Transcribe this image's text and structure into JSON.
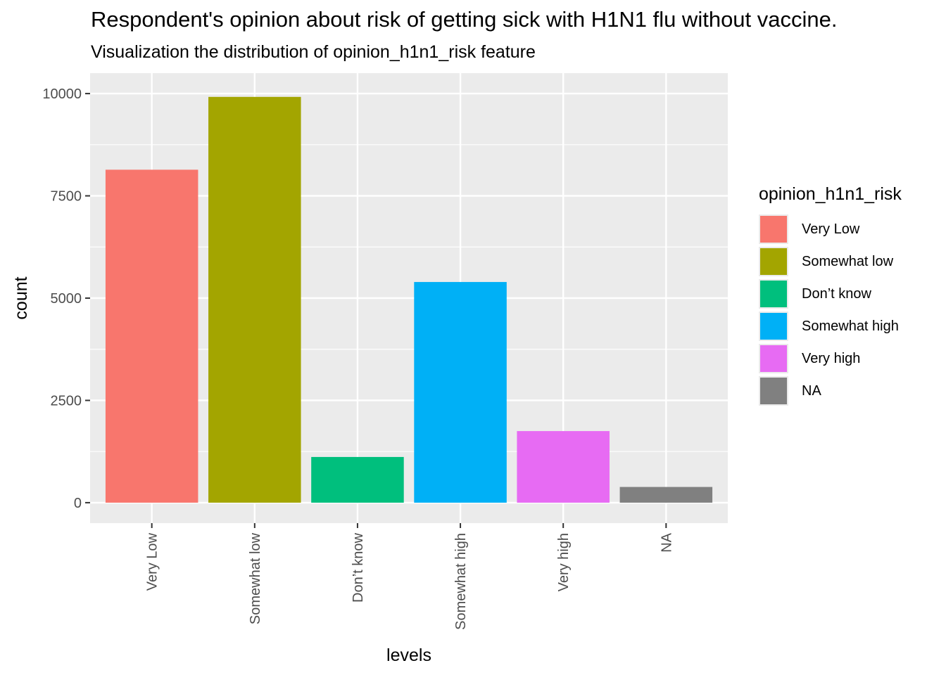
{
  "chart_data": {
    "type": "bar",
    "title": "Respondent's opinion about risk of getting sick with H1N1 flu without vaccine.",
    "subtitle": "Visualization the distribution of opinion_h1n1_risk feature",
    "xlabel": "levels",
    "ylabel": "count",
    "categories": [
      "Very Low",
      "Somewhat low",
      "Don’t know",
      "Somewhat high",
      "Very high",
      "NA"
    ],
    "values": [
      8139,
      9919,
      1117,
      5394,
      1750,
      384
    ],
    "colors": [
      "#F8766D",
      "#A3A500",
      "#00BF7D",
      "#00B0F6",
      "#E76BF3",
      "#808080"
    ],
    "ylim": [
      -500,
      10500
    ],
    "yticks": [
      0,
      2500,
      5000,
      7500,
      10000
    ],
    "ytick_labels": [
      "0",
      "2500",
      "5000",
      "7500",
      "10000"
    ],
    "grid": true,
    "legend": {
      "title": "opinion_h1n1_risk",
      "placement": "right",
      "items": [
        "Very Low",
        "Somewhat low",
        "Don’t know",
        "Somewhat high",
        "Very high",
        "NA"
      ]
    }
  }
}
